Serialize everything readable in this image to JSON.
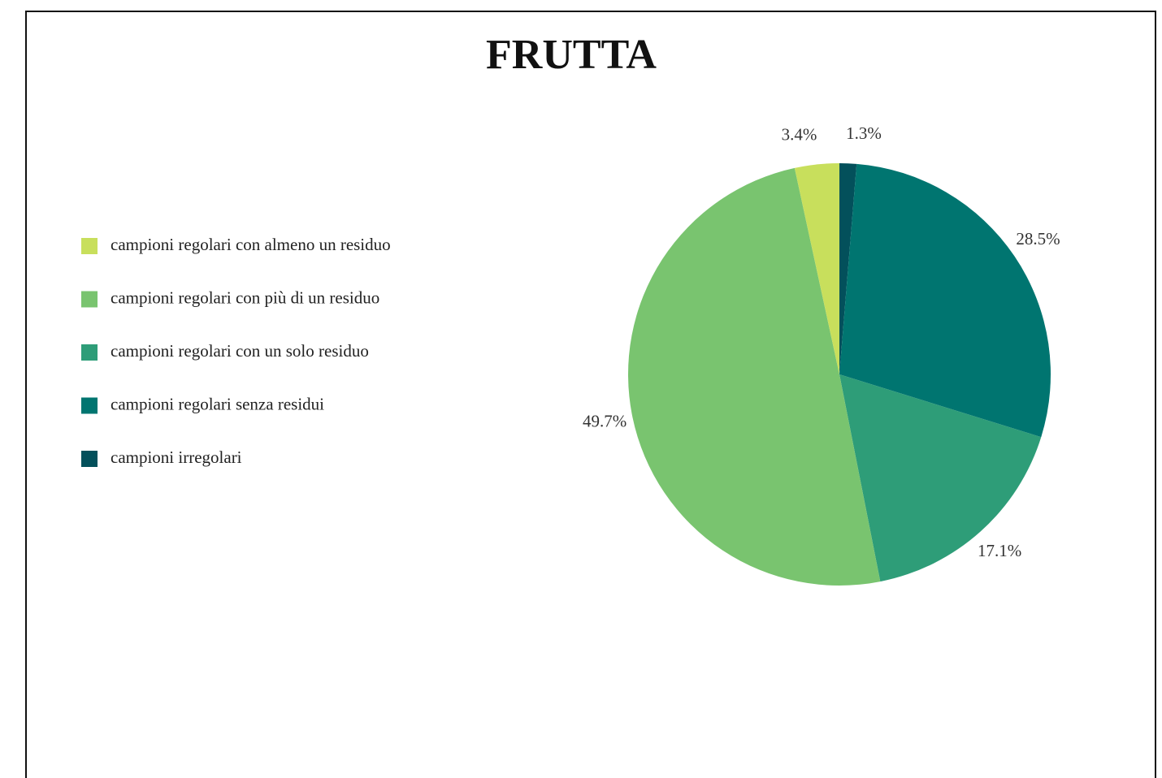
{
  "chart_data": {
    "type": "pie",
    "title": "FRUTTA",
    "categories": [
      "campioni regolari con almeno un residuo",
      "campioni regolari con più di un residuo",
      "campioni regolari con un solo residuo",
      "campioni regolari senza residui",
      "campioni irregolari"
    ],
    "values": [
      3.4,
      49.7,
      17.1,
      28.5,
      1.3
    ],
    "value_labels": [
      "3.4%",
      "49.7%",
      "17.1%",
      "28.5%",
      "1.3%"
    ],
    "colors": [
      "#c8df5c",
      "#79c46f",
      "#2e9d78",
      "#007570",
      "#03505b"
    ]
  }
}
